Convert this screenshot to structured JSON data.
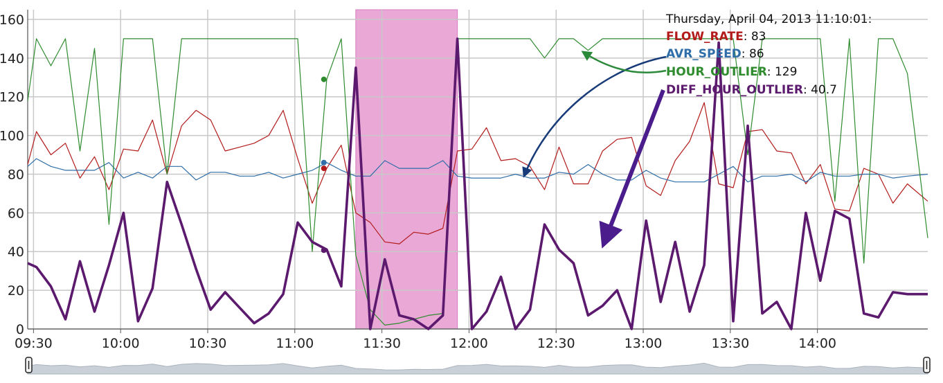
{
  "colors": {
    "flow_rate": "#b31b1b",
    "avr_speed": "#2f6ea8",
    "hour_outlier": "#2e8b2e",
    "diff_hour_outlier": "#5c1a6e",
    "highlight": "#e9a8d6",
    "grid": "#c8c8c8",
    "blue_arrow": "#173a78",
    "green_arrow": "#2a8a3a",
    "purple_arrow": "#4a1c8c"
  },
  "tooltip": {
    "timestamp": "Thursday, April 04, 2013 11:10:01:",
    "rows": [
      {
        "name": "FLOW_RATE",
        "value": "83",
        "color_key": "flow_rate"
      },
      {
        "name": "AVR_SPEED",
        "value": "86",
        "color_key": "avr_speed"
      },
      {
        "name": "HOUR_OUTLIER",
        "value": "129",
        "color_key": "hour_outlier"
      },
      {
        "name": "DIFF_HOUR_OUTLIER",
        "value": "40.7",
        "color_key": "diff_hour_outlier"
      }
    ]
  },
  "navigator": {
    "handle_icon": "range-handle-icon"
  },
  "chart_data": {
    "type": "line",
    "x_unit": "time",
    "x_tick_labels": [
      "09:30",
      "10:00",
      "10:30",
      "11:00",
      "11:30",
      "12:00",
      "12:30",
      "13:00",
      "13:30",
      "14:00"
    ],
    "y_tick_labels": [
      "0",
      "20",
      "40",
      "60",
      "80",
      "100",
      "120",
      "140",
      "160"
    ],
    "ylim": [
      0,
      165
    ],
    "xlim": [
      "09:28",
      "14:38"
    ],
    "grid": true,
    "highlighted_range": [
      "11:21",
      "11:56"
    ],
    "series": [
      {
        "name": "FLOW_RATE",
        "color_key": "flow_rate",
        "width": 1.2,
        "x": [
          "09:28",
          "09:31",
          "09:36",
          "09:41",
          "09:46",
          "09:51",
          "09:56",
          "10:01",
          "10:06",
          "10:11",
          "10:16",
          "10:21",
          "10:26",
          "10:31",
          "10:36",
          "10:41",
          "10:46",
          "10:51",
          "10:56",
          "11:01",
          "11:06",
          "11:11",
          "11:16",
          "11:21",
          "11:26",
          "11:31",
          "11:36",
          "11:41",
          "11:46",
          "11:51",
          "11:56",
          "12:01",
          "12:06",
          "12:11",
          "12:16",
          "12:21",
          "12:26",
          "12:31",
          "12:36",
          "12:41",
          "12:46",
          "12:51",
          "12:56",
          "13:01",
          "13:06",
          "13:11",
          "13:16",
          "13:21",
          "13:26",
          "13:31",
          "13:36",
          "13:41",
          "13:46",
          "13:51",
          "13:56",
          "14:01",
          "14:06",
          "14:11",
          "14:16",
          "14:21",
          "14:26",
          "14:31",
          "14:38"
        ],
        "y": [
          85,
          102,
          90,
          96,
          78,
          89,
          72,
          93,
          92,
          108,
          80,
          105,
          113,
          108,
          92,
          94,
          96,
          100,
          113,
          88,
          65,
          83,
          95,
          60,
          55,
          45,
          44,
          50,
          49,
          52,
          92,
          93,
          104,
          87,
          88,
          84,
          72,
          94,
          75,
          75,
          92,
          98,
          99,
          74,
          69,
          87,
          97,
          117,
          75,
          73,
          102,
          103,
          92,
          91,
          75,
          85,
          62,
          61,
          83,
          80,
          65,
          75,
          66
        ],
        "markers": [
          {
            "x": "11:10",
            "y": 83
          }
        ]
      },
      {
        "name": "AVR_SPEED",
        "color_key": "avr_speed",
        "width": 1.2,
        "x": [
          "09:28",
          "09:31",
          "09:36",
          "09:41",
          "09:46",
          "09:51",
          "09:56",
          "10:01",
          "10:06",
          "10:11",
          "10:16",
          "10:21",
          "10:26",
          "10:31",
          "10:36",
          "10:41",
          "10:46",
          "10:51",
          "10:56",
          "11:01",
          "11:06",
          "11:11",
          "11:16",
          "11:21",
          "11:26",
          "11:31",
          "11:36",
          "11:41",
          "11:46",
          "11:51",
          "11:56",
          "12:01",
          "12:06",
          "12:11",
          "12:16",
          "12:21",
          "12:26",
          "12:31",
          "12:36",
          "12:41",
          "12:46",
          "12:51",
          "12:56",
          "13:01",
          "13:06",
          "13:11",
          "13:16",
          "13:21",
          "13:26",
          "13:31",
          "13:36",
          "13:41",
          "13:46",
          "13:51",
          "13:56",
          "14:01",
          "14:06",
          "14:11",
          "14:16",
          "14:21",
          "14:26",
          "14:31",
          "14:38"
        ],
        "y": [
          84,
          88,
          84,
          82,
          82,
          82,
          86,
          78,
          81,
          78,
          84,
          84,
          77,
          81,
          81,
          79,
          79,
          81,
          78,
          80,
          82,
          86,
          82,
          79,
          79,
          87,
          83,
          83,
          83,
          87,
          79,
          78,
          78,
          78,
          80,
          78,
          78,
          81,
          80,
          85,
          80,
          77,
          77,
          82,
          78,
          76,
          76,
          76,
          80,
          84,
          76,
          79,
          79,
          80,
          76,
          81,
          79,
          79,
          80,
          80,
          78,
          79,
          80
        ],
        "markers": [
          {
            "x": "11:10",
            "y": 86
          }
        ]
      },
      {
        "name": "HOUR_OUTLIER",
        "color_key": "hour_outlier",
        "width": 1.2,
        "x": [
          "09:28",
          "09:31",
          "09:36",
          "09:41",
          "09:46",
          "09:51",
          "09:56",
          "10:01",
          "10:06",
          "10:11",
          "10:16",
          "10:21",
          "10:26",
          "10:31",
          "10:36",
          "10:41",
          "10:46",
          "10:51",
          "10:56",
          "11:01",
          "11:06",
          "11:11",
          "11:16",
          "11:21",
          "11:26",
          "11:31",
          "11:36",
          "11:41",
          "11:46",
          "11:51",
          "11:56",
          "12:01",
          "12:06",
          "12:11",
          "12:16",
          "12:21",
          "12:26",
          "12:31",
          "12:36",
          "12:41",
          "12:46",
          "12:51",
          "12:56",
          "13:01",
          "13:06",
          "13:11",
          "13:16",
          "13:21",
          "13:26",
          "13:31",
          "13:36",
          "13:41",
          "13:46",
          "13:51",
          "13:56",
          "14:01",
          "14:06",
          "14:11",
          "14:16",
          "14:21",
          "14:26",
          "14:31",
          "14:38"
        ],
        "y": [
          118,
          150,
          136,
          150,
          92,
          145,
          54,
          150,
          150,
          150,
          80,
          150,
          150,
          150,
          150,
          150,
          150,
          150,
          150,
          150,
          40,
          129,
          150,
          38,
          10,
          2,
          3,
          5,
          7,
          8,
          150,
          150,
          150,
          150,
          150,
          150,
          140,
          150,
          150,
          144,
          150,
          150,
          150,
          150,
          150,
          150,
          150,
          150,
          150,
          150,
          90,
          150,
          150,
          150,
          150,
          150,
          66,
          150,
          34,
          150,
          150,
          132,
          47
        ],
        "markers": [
          {
            "x": "11:10",
            "y": 129
          }
        ]
      },
      {
        "name": "DIFF_HOUR_OUTLIER",
        "color_key": "diff_hour_outlier",
        "width": 3.6,
        "x": [
          "09:28",
          "09:31",
          "09:36",
          "09:41",
          "09:46",
          "09:51",
          "09:56",
          "10:01",
          "10:06",
          "10:11",
          "10:16",
          "10:21",
          "10:26",
          "10:31",
          "10:36",
          "10:41",
          "10:46",
          "10:51",
          "10:56",
          "11:01",
          "11:06",
          "11:11",
          "11:16",
          "11:21",
          "11:26",
          "11:31",
          "11:36",
          "11:41",
          "11:46",
          "11:51",
          "11:56",
          "12:01",
          "12:06",
          "12:11",
          "12:16",
          "12:21",
          "12:26",
          "12:31",
          "12:36",
          "12:41",
          "12:46",
          "12:51",
          "12:56",
          "13:01",
          "13:06",
          "13:11",
          "13:16",
          "13:21",
          "13:26",
          "13:31",
          "13:36",
          "13:41",
          "13:46",
          "13:51",
          "13:56",
          "14:01",
          "14:06",
          "14:11",
          "14:16",
          "14:21",
          "14:26",
          "14:31",
          "14:38"
        ],
        "y": [
          34,
          32,
          22,
          5,
          35,
          9,
          33,
          60,
          4,
          21,
          76,
          54,
          31,
          10,
          19,
          11,
          3,
          8,
          18,
          55,
          45,
          41,
          22,
          135,
          0,
          36,
          7,
          5,
          0,
          7,
          150,
          0,
          9,
          27,
          0,
          10,
          54,
          41,
          34,
          7,
          12,
          20,
          0,
          56,
          14,
          45,
          9,
          33,
          148,
          4,
          105,
          8,
          14,
          0,
          60,
          25,
          61,
          57,
          8,
          6,
          19,
          18,
          18
        ],
        "markers": [
          {
            "x": "11:10",
            "y": 40.7
          }
        ]
      }
    ]
  }
}
